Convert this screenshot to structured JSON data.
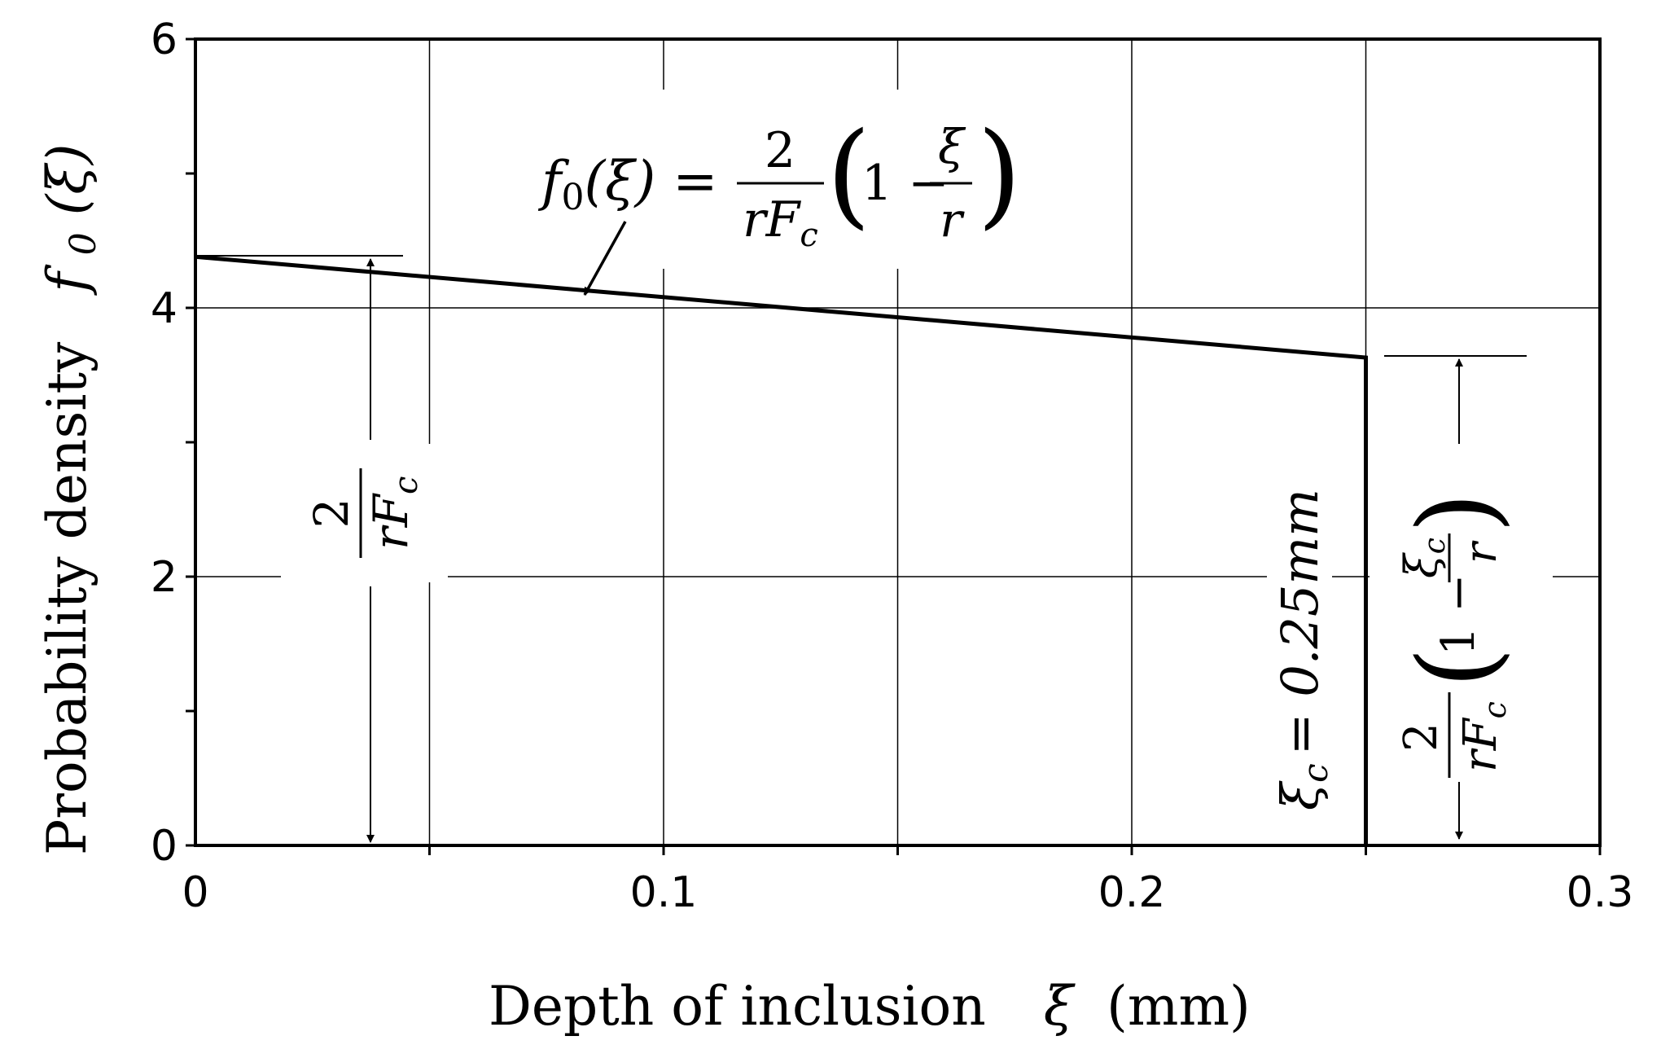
{
  "chart_data": {
    "type": "line",
    "xlabel": "Depth of inclusion",
    "xlabel_symbol": "ξ",
    "xlabel_unit": "(mm)",
    "ylabel": "Probability density",
    "ylabel_symbol": "f",
    "ylabel_subscript": "0",
    "ylabel_arg": "(ξ)",
    "xlim": [
      0,
      0.3
    ],
    "ylim": [
      0,
      6
    ],
    "x_ticks": [
      {
        "value": 0,
        "label": "0"
      },
      {
        "value": 0.1,
        "label": "0.1"
      },
      {
        "value": 0.2,
        "label": "0.2"
      },
      {
        "value": 0.3,
        "label": "0.3"
      }
    ],
    "y_ticks": [
      {
        "value": 0,
        "label": "0"
      },
      {
        "value": 2,
        "label": "2"
      },
      {
        "value": 4,
        "label": "4"
      },
      {
        "value": 6,
        "label": "6"
      }
    ],
    "x_gridlines": [
      0.05,
      0.1,
      0.15,
      0.2,
      0.25,
      0.3
    ],
    "y_gridlines": [
      2,
      4,
      6
    ],
    "grid": true,
    "series": [
      {
        "points": [
          [
            0,
            4.38
          ],
          [
            0.25,
            3.63
          ],
          [
            0.25,
            0
          ]
        ]
      }
    ],
    "annotations": {
      "formula": {
        "lhs": "f",
        "lhs_sub": "0",
        "lhs_arg": "(ξ) =",
        "num": "2",
        "den": "rF",
        "den_sub": "c",
        "paren_open": "(",
        "one_minus": "1 −",
        "inner_num": "ξ",
        "inner_den": "r",
        "paren_close": ")"
      },
      "left_dim": {
        "num": "2",
        "den": "rF",
        "den_sub": "c"
      },
      "cutoff": {
        "symbol": "ξ",
        "symbol_sub": "c",
        "text": "= 0.25mm"
      },
      "right_dim": {
        "num": "2",
        "den": "rF",
        "den_sub": "c",
        "paren_open": "(",
        "one_minus": "1 −",
        "inner_num": "ξ",
        "inner_num_sub": "c",
        "inner_den": "r",
        "paren_close": ")"
      }
    }
  }
}
